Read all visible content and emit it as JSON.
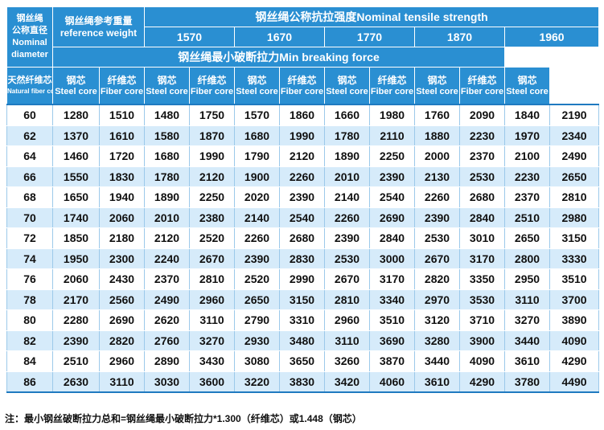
{
  "header": {
    "diameter_label": [
      "钢丝绳",
      "公称直径",
      "Nominal",
      "diameter"
    ],
    "ref_weight_label": [
      "钢丝绳参考重量",
      "reference weight"
    ],
    "tensile_title": "钢丝绳公称抗拉强度Nominal tensile strength",
    "grades": [
      "1570",
      "1670",
      "1770",
      "1870",
      "1960"
    ],
    "breaking_force_title": "钢丝绳最小破断拉力Min breaking force",
    "ref_cores": [
      {
        "cn": "天然纤维芯",
        "en": "Natural fiber core"
      },
      {
        "cn": "钢芯",
        "en": "Steel core"
      }
    ],
    "grade_cores": [
      {
        "cn": "纤维芯",
        "en": "Fiber core"
      },
      {
        "cn": "钢芯",
        "en": "Steel core"
      }
    ]
  },
  "rows": [
    [
      "60",
      "1280",
      "1510",
      "1480",
      "1750",
      "1570",
      "1860",
      "1660",
      "1980",
      "1760",
      "2090",
      "1840",
      "2190"
    ],
    [
      "62",
      "1370",
      "1610",
      "1580",
      "1870",
      "1680",
      "1990",
      "1780",
      "2110",
      "1880",
      "2230",
      "1970",
      "2340"
    ],
    [
      "64",
      "1460",
      "1720",
      "1680",
      "1990",
      "1790",
      "2120",
      "1890",
      "2250",
      "2000",
      "2370",
      "2100",
      "2490"
    ],
    [
      "66",
      "1550",
      "1830",
      "1780",
      "2120",
      "1900",
      "2260",
      "2010",
      "2390",
      "2130",
      "2530",
      "2230",
      "2650"
    ],
    [
      "68",
      "1650",
      "1940",
      "1890",
      "2250",
      "2020",
      "2390",
      "2140",
      "2540",
      "2260",
      "2680",
      "2370",
      "2810"
    ],
    [
      "70",
      "1740",
      "2060",
      "2010",
      "2380",
      "2140",
      "2540",
      "2260",
      "2690",
      "2390",
      "2840",
      "2510",
      "2980"
    ],
    [
      "72",
      "1850",
      "2180",
      "2120",
      "2520",
      "2260",
      "2680",
      "2390",
      "2840",
      "2530",
      "3010",
      "2650",
      "3150"
    ],
    [
      "74",
      "1950",
      "2300",
      "2240",
      "2670",
      "2390",
      "2830",
      "2530",
      "3000",
      "2670",
      "3170",
      "2800",
      "3330"
    ],
    [
      "76",
      "2060",
      "2430",
      "2370",
      "2810",
      "2520",
      "2990",
      "2670",
      "3170",
      "2820",
      "3350",
      "2950",
      "3510"
    ],
    [
      "78",
      "2170",
      "2560",
      "2490",
      "2960",
      "2650",
      "3150",
      "2810",
      "3340",
      "2970",
      "3530",
      "3110",
      "3700"
    ],
    [
      "80",
      "2280",
      "2690",
      "2620",
      "3110",
      "2790",
      "3310",
      "2960",
      "3510",
      "3120",
      "3710",
      "3270",
      "3890"
    ],
    [
      "82",
      "2390",
      "2820",
      "2760",
      "3270",
      "2930",
      "3480",
      "3110",
      "3690",
      "3280",
      "3900",
      "3440",
      "4090"
    ],
    [
      "84",
      "2510",
      "2960",
      "2890",
      "3430",
      "3080",
      "3650",
      "3260",
      "3870",
      "3440",
      "4090",
      "3610",
      "4290"
    ],
    [
      "86",
      "2630",
      "3110",
      "3030",
      "3600",
      "3220",
      "3830",
      "3420",
      "4060",
      "3610",
      "4290",
      "3780",
      "4490"
    ]
  ],
  "note": "注：最小钢丝破断拉力总和=钢丝绳最小破断拉力*1.300（纤维芯）或1.448（钢芯）",
  "colors": {
    "header_bg": "#2a8fd2",
    "stripe": "#d6ebfa",
    "border": "#9cc9ea"
  }
}
